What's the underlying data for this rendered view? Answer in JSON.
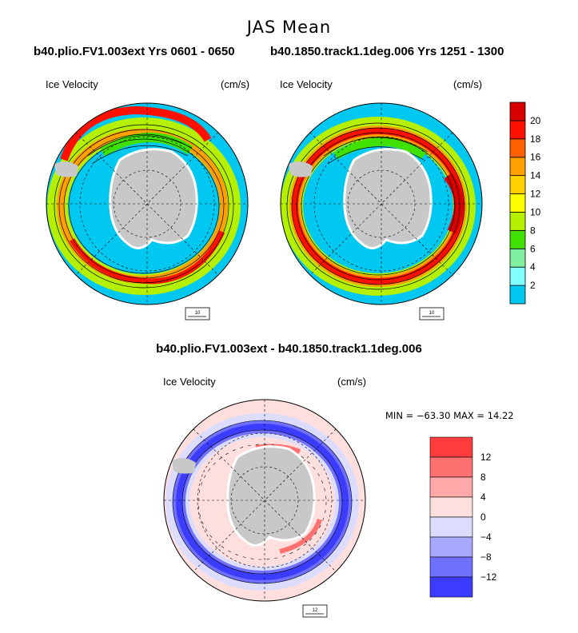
{
  "page_title": "JAS Mean",
  "chart_data": [
    {
      "type": "map",
      "title": "b40.plio.FV1.003ext  Yrs 0601 - 0650",
      "variable_label": "Ice Velocity",
      "units": "(cm/s)",
      "reference_vector": "10",
      "colorbar": {
        "levels": [
          2,
          4,
          6,
          8,
          10,
          12,
          14,
          16,
          18,
          20
        ],
        "colors": [
          "#00c8f0",
          "#80ffff",
          "#80f0a0",
          "#40e000",
          "#b4f000",
          "#ffff00",
          "#ffd000",
          "#ffa000",
          "#ff6000",
          "#ff1000",
          "#d80000"
        ]
      }
    },
    {
      "type": "map",
      "title": "b40.1850.track1.1deg.006  Yrs 1251 - 1300",
      "variable_label": "Ice Velocity",
      "units": "(cm/s)",
      "reference_vector": "10"
    },
    {
      "type": "map",
      "title": "b40.plio.FV1.003ext - b40.1850.track1.1deg.006",
      "variable_label": "Ice Velocity",
      "units": "(cm/s)",
      "reference_vector": "12",
      "min_max_text": "MIN = −63.30 MAX =  14.22",
      "colorbar": {
        "levels": [
          12,
          8,
          4,
          0,
          -4,
          -8,
          -12
        ],
        "level_labels": [
          "12",
          "8",
          "4",
          "0",
          "−4",
          "−8",
          "−12"
        ],
        "colors": [
          "#ff3c3c",
          "#ff7070",
          "#ffa8a8",
          "#ffdede",
          "#dcdcff",
          "#a8a8ff",
          "#7070ff",
          "#3c3cff"
        ]
      }
    }
  ],
  "colors": {
    "ocean_low": "#00c8f0",
    "land": "#c8c8c8",
    "diff_background": "#ffdede",
    "diff_negative": "#3c3cff"
  }
}
